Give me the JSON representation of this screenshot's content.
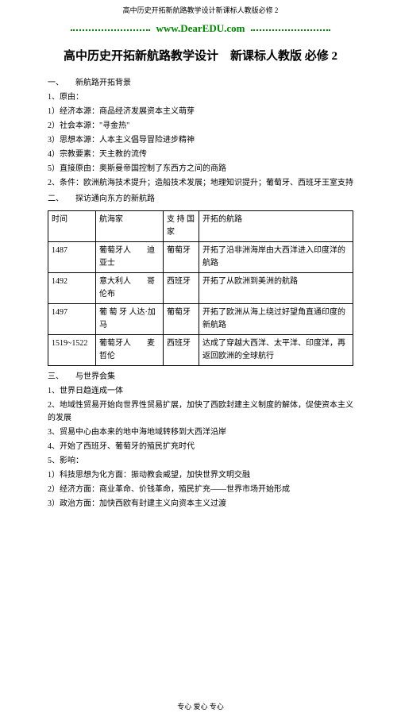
{
  "header": "高中历史开拓新航路教学设计新课标人教版必修 2",
  "banner": "www.DearEDU.com",
  "title": "高中历史开拓新航路教学设计　新课标人教版 必修 2",
  "s1": {
    "heading": "一、　　新航路开拓背景",
    "i0": "1、原由：",
    "i1": "1）经济本源：商品经济发展资本主义萌芽",
    "i2": "2）社会本源：\"寻金热\"",
    "i3": "3）思想本源：人本主义倡导冒险进步精神",
    "i4": "4）宗教要素：天主教的流传",
    "i5": "5）直接原由：奥斯曼帝国控制了东西方之间的商路",
    "i6": "2、条件：欧洲航海技术提升；造船技术发展；地理知识提升；葡萄牙、西班牙王室支持"
  },
  "s2": {
    "heading": "二、　　探访通向东方的新航路",
    "h1": "时间",
    "h2": "航海家",
    "h3": "支 持 国家",
    "h4": "开拓的航路",
    "r1c1": "1487",
    "r1c2": "葡萄牙人　　迪亚士",
    "r1c3": "葡萄牙",
    "r1c4": "开拓了沿非洲海岸由大西洋进入印度洋的航路",
    "r2c1": "1492",
    "r2c2": "意大利人　　哥伦布",
    "r2c3": "西班牙",
    "r2c4": "开拓了从欧洲到美洲的航路",
    "r3c1": "1497",
    "r3c2": "葡 萄 牙 人达·加马",
    "r3c3": "葡萄牙",
    "r3c4": "开拓了欧洲从海上绕过好望角直通印度的新航路",
    "r4c1": "1519~1522",
    "r4c2": "葡萄牙人　　麦哲伦",
    "r4c3": "西班牙",
    "r4c4": "达成了穿越大西洋、太平洋、印度洋，再返回欧洲的全球航行"
  },
  "s3": {
    "heading": "三、　　与世界会集",
    "i1": "1、世界日趋连成一体",
    "i2": "2、地域性贸易开始向世界性贸易扩展，加快了西欧封建主义制度的解体，促使资本主义的发展",
    "i3": "3、贸易中心由本来的地中海地域转移到大西洋沿岸",
    "i4": "4、开始了西班牙、葡萄牙的殖民扩充时代",
    "i5": "5、影响：",
    "i6": "1）科技思想为化方面：振动教会威望，加快世界文明交融",
    "i7": "2）经济方面：商业革命、价钱革命，殖民扩充——世界市场开始形成",
    "i8": "3）政治方面：加快西欧有封建主义向资本主义过渡"
  },
  "footer": "专心 爱心 专心"
}
